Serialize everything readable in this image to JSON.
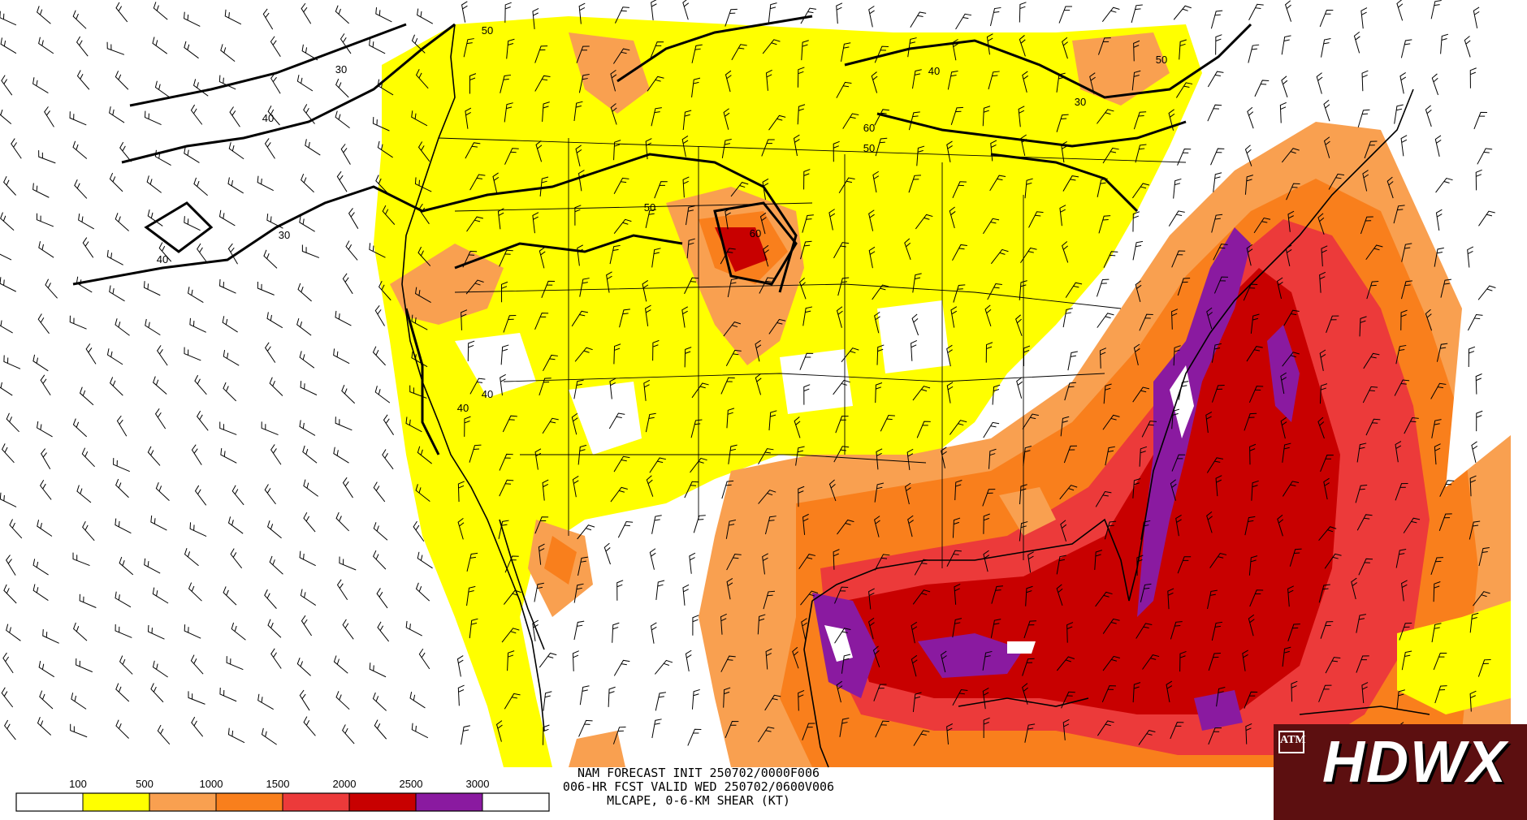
{
  "header": {
    "line1": "NAM FORECAST INIT 250702/0000F006",
    "line2": "006-HR FCST VALID WED 250702/0600V006",
    "line3": "MLCAPE, 0-6-KM SHEAR (KT)"
  },
  "legend": {
    "colors": [
      "#ffffff",
      "#ffff00",
      "#f9a050",
      "#f97f1c",
      "#ec3a3a",
      "#c80000",
      "#8a1aa0",
      "#ffffff"
    ],
    "labels": [
      "100",
      "500",
      "1000",
      "1500",
      "2000",
      "2500",
      "3000"
    ]
  },
  "contour_labels": [
    "30",
    "40",
    "50",
    "60"
  ],
  "logo": {
    "text": "HDWX",
    "mark": "ATM"
  },
  "colors": {
    "coast": "#000000",
    "contour": "#000000"
  }
}
